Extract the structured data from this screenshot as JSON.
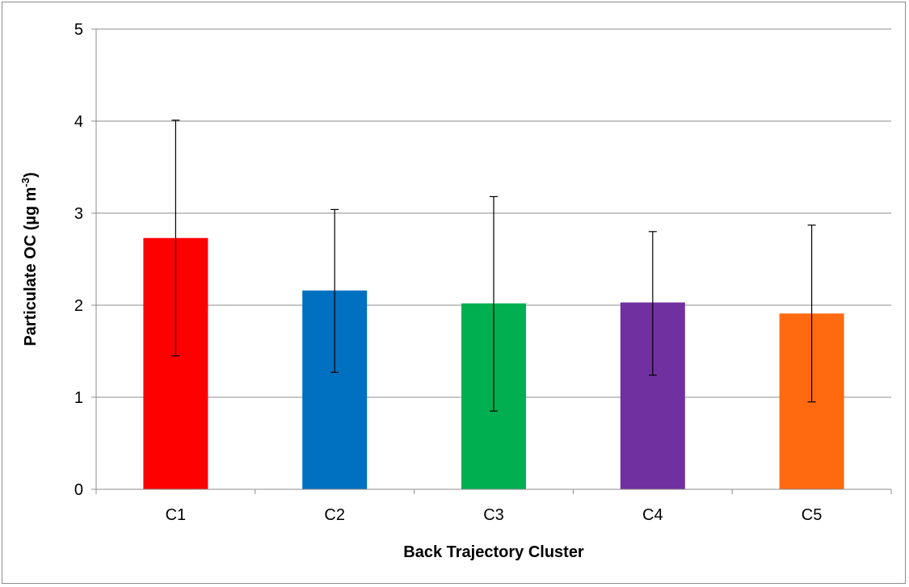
{
  "chart_data": {
    "type": "bar",
    "categories": [
      "C1",
      "C2",
      "C3",
      "C4",
      "C5"
    ],
    "values": [
      2.73,
      2.16,
      2.02,
      2.03,
      1.91
    ],
    "error_low": [
      1.45,
      1.27,
      0.85,
      1.24,
      0.95
    ],
    "error_high": [
      4.01,
      3.04,
      3.18,
      2.8,
      2.87
    ],
    "colors": [
      "#ff0000",
      "#0070c0",
      "#00b050",
      "#7030a0",
      "#ff6a10"
    ],
    "xlabel": "Back Trajectory Cluster",
    "ylabel_main": "Particulate OC (µg m",
    "ylabel_sup": "-3",
    "ylabel_end": ")",
    "ylim": [
      0,
      5
    ],
    "yticks": [
      "0",
      "1",
      "2",
      "3",
      "4",
      "5"
    ],
    "grid": true,
    "legend": "none"
  }
}
